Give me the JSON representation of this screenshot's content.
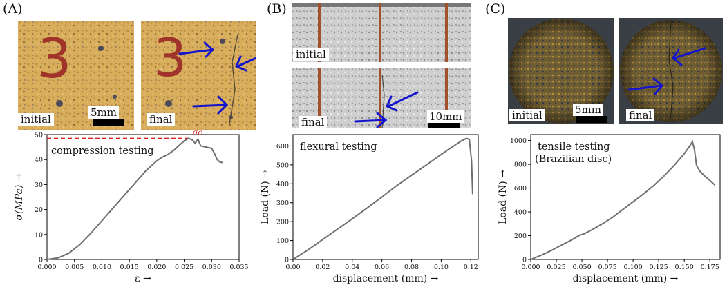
{
  "panels": {
    "A": {
      "letter": "(A)",
      "photo_initial_label": "initial",
      "photo_final_label": "final",
      "scale_label": "5mm",
      "specimen_mark": "3"
    },
    "B": {
      "letter": "(B)",
      "photo_initial_label": "initial",
      "photo_final_label": "final",
      "scale_label": "10mm"
    },
    "C": {
      "letter": "(C)",
      "photo_initial_label": "initial",
      "photo_final_label": "final",
      "scale_label": "5mm"
    }
  },
  "colors": {
    "curve": "#6e6e6e",
    "arrow": "#1414cc",
    "reference_line": "#e02020",
    "sand": "#d9b060",
    "concrete": "#c8c8c8",
    "disc": "#6b5a30"
  },
  "chart_data": [
    {
      "type": "line",
      "annotation": "compression testing",
      "peak_label": "σc",
      "xlabel": "ε →",
      "ylabel": "σ(MPa) →",
      "xlim": [
        0,
        0.035
      ],
      "ylim": [
        0,
        50
      ],
      "xticks": [
        "0.000",
        "0.005",
        "0.010",
        "0.015",
        "0.020",
        "0.025",
        "0.030",
        "0.035"
      ],
      "yticks": [
        "0",
        "10",
        "20",
        "30",
        "40",
        "50"
      ],
      "reference_line_y": 48.5,
      "x": [
        0,
        0.002,
        0.004,
        0.006,
        0.008,
        0.01,
        0.012,
        0.014,
        0.016,
        0.018,
        0.02,
        0.021,
        0.022,
        0.023,
        0.024,
        0.025,
        0.0258,
        0.0265,
        0.027,
        0.0275,
        0.028,
        0.029,
        0.03,
        0.0305,
        0.031,
        0.0315,
        0.032
      ],
      "y": [
        0,
        0.6,
        2.5,
        6,
        10.5,
        15.5,
        20.5,
        25.5,
        30.5,
        35.5,
        39.5,
        41,
        42,
        43.5,
        45.5,
        47.5,
        48.5,
        47.8,
        46.5,
        48.2,
        45.5,
        45,
        44.5,
        42.5,
        40,
        39,
        38.8
      ]
    },
    {
      "type": "line",
      "annotation": "flexural testing",
      "xlabel": "displacement (mm) →",
      "ylabel": "Load (N) →",
      "xlim": [
        0,
        0.125
      ],
      "ylim": [
        0,
        660
      ],
      "xticks": [
        "0.00",
        "0.02",
        "0.04",
        "0.06",
        "0.08",
        "0.10",
        "0.12"
      ],
      "yticks": [
        "0",
        "100",
        "200",
        "300",
        "400",
        "500",
        "600"
      ],
      "x": [
        0,
        0.01,
        0.02,
        0.03,
        0.04,
        0.05,
        0.06,
        0.07,
        0.08,
        0.09,
        0.1,
        0.105,
        0.11,
        0.114,
        0.117,
        0.119,
        0.1205,
        0.1212
      ],
      "y": [
        0,
        50,
        105,
        160,
        215,
        272,
        330,
        390,
        445,
        500,
        555,
        582,
        608,
        628,
        640,
        635,
        520,
        345
      ]
    },
    {
      "type": "line",
      "annotation": "tensile testing",
      "annotation_line2": "(Brazilian disc)",
      "xlabel": "displacement (mm) →",
      "ylabel": "Load (N) →",
      "xlim": [
        0,
        0.185
      ],
      "ylim": [
        0,
        1050
      ],
      "xticks": [
        "0.000",
        "0.025",
        "0.050",
        "0.075",
        "0.100",
        "0.125",
        "0.150",
        "0.175"
      ],
      "yticks": [
        "0",
        "200",
        "400",
        "600",
        "800",
        "1000"
      ],
      "x": [
        0,
        0.01,
        0.02,
        0.03,
        0.04,
        0.048,
        0.052,
        0.06,
        0.07,
        0.08,
        0.09,
        0.1,
        0.11,
        0.12,
        0.13,
        0.14,
        0.15,
        0.155,
        0.158,
        0.16,
        0.162,
        0.165,
        0.17,
        0.175,
        0.18
      ],
      "y": [
        0,
        35,
        75,
        120,
        165,
        205,
        215,
        250,
        300,
        355,
        420,
        485,
        550,
        620,
        700,
        790,
        890,
        950,
        990,
        920,
        790,
        745,
        700,
        665,
        625
      ]
    }
  ]
}
